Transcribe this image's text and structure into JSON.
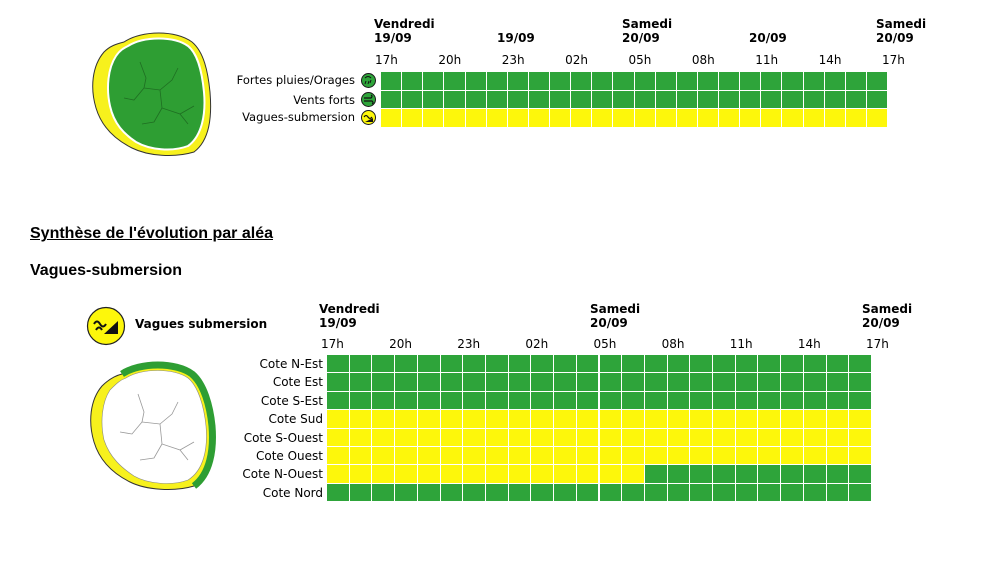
{
  "colors": {
    "green": "#2ea43a",
    "yellow": "#fdf70b",
    "map_green": "#2e9e33",
    "map_yellow": "#f7f11d"
  },
  "top_chart": {
    "days": [
      {
        "name": "Vendredi",
        "date": "19/09"
      },
      {
        "name": "",
        "date": "19/09"
      },
      {
        "name": "Samedi",
        "date": "20/09"
      },
      {
        "name": "",
        "date": "20/09"
      },
      {
        "name": "Samedi",
        "date": "20/09"
      }
    ],
    "hours": [
      "17h",
      "20h",
      "23h",
      "02h",
      "05h",
      "08h",
      "11h",
      "14h",
      "17h"
    ],
    "rows": [
      {
        "label": "Fortes pluies/Orages",
        "icon": "rain-storm-icon",
        "levels": [
          "green",
          "green",
          "green",
          "green",
          "green",
          "green",
          "green",
          "green",
          "green",
          "green",
          "green",
          "green",
          "green",
          "green",
          "green",
          "green",
          "green",
          "green",
          "green",
          "green",
          "green",
          "green",
          "green",
          "green"
        ]
      },
      {
        "label": "Vents forts",
        "icon": "wind-icon",
        "levels": [
          "green",
          "green",
          "green",
          "green",
          "green",
          "green",
          "green",
          "green",
          "green",
          "green",
          "green",
          "green",
          "green",
          "green",
          "green",
          "green",
          "green",
          "green",
          "green",
          "green",
          "green",
          "green",
          "green",
          "green"
        ]
      },
      {
        "label": "Vagues-submersion",
        "icon": "wave-icon",
        "levels": [
          "yellow",
          "yellow",
          "yellow",
          "yellow",
          "yellow",
          "yellow",
          "yellow",
          "yellow",
          "yellow",
          "yellow",
          "yellow",
          "yellow",
          "yellow",
          "yellow",
          "yellow",
          "yellow",
          "yellow",
          "yellow",
          "yellow",
          "yellow",
          "yellow",
          "yellow",
          "yellow",
          "yellow"
        ]
      }
    ]
  },
  "section_title": "Synthèse de l'évolution par aléa",
  "subsection_title": "Vagues-submersion",
  "legend_label": "Vagues submersion",
  "bottom_chart": {
    "days": [
      {
        "name": "Vendredi",
        "date": "19/09"
      },
      {
        "name": "Samedi",
        "date": "20/09"
      },
      {
        "name": "Samedi",
        "date": "20/09"
      }
    ],
    "hours": [
      "17h",
      "20h",
      "23h",
      "02h",
      "05h",
      "08h",
      "11h",
      "14h",
      "17h"
    ],
    "rows": [
      {
        "label": "Cote N-Est",
        "levels": [
          "green",
          "green",
          "green",
          "green",
          "green",
          "green",
          "green",
          "green",
          "green",
          "green",
          "green",
          "green",
          "green",
          "green",
          "green",
          "green",
          "green",
          "green",
          "green",
          "green",
          "green",
          "green",
          "green",
          "green"
        ]
      },
      {
        "label": "Cote Est",
        "levels": [
          "green",
          "green",
          "green",
          "green",
          "green",
          "green",
          "green",
          "green",
          "green",
          "green",
          "green",
          "green",
          "green",
          "green",
          "green",
          "green",
          "green",
          "green",
          "green",
          "green",
          "green",
          "green",
          "green",
          "green"
        ]
      },
      {
        "label": "Cote S-Est",
        "levels": [
          "green",
          "green",
          "green",
          "green",
          "green",
          "green",
          "green",
          "green",
          "green",
          "green",
          "green",
          "green",
          "green",
          "green",
          "green",
          "green",
          "green",
          "green",
          "green",
          "green",
          "green",
          "green",
          "green",
          "green"
        ]
      },
      {
        "label": "Cote Sud",
        "levels": [
          "yellow",
          "yellow",
          "yellow",
          "yellow",
          "yellow",
          "yellow",
          "yellow",
          "yellow",
          "yellow",
          "yellow",
          "yellow",
          "yellow",
          "yellow",
          "yellow",
          "yellow",
          "yellow",
          "yellow",
          "yellow",
          "yellow",
          "yellow",
          "yellow",
          "yellow",
          "yellow",
          "yellow"
        ]
      },
      {
        "label": "Cote S-Ouest",
        "levels": [
          "yellow",
          "yellow",
          "yellow",
          "yellow",
          "yellow",
          "yellow",
          "yellow",
          "yellow",
          "yellow",
          "yellow",
          "yellow",
          "yellow",
          "yellow",
          "yellow",
          "yellow",
          "yellow",
          "yellow",
          "yellow",
          "yellow",
          "yellow",
          "yellow",
          "yellow",
          "yellow",
          "yellow"
        ]
      },
      {
        "label": "Cote Ouest",
        "levels": [
          "yellow",
          "yellow",
          "yellow",
          "yellow",
          "yellow",
          "yellow",
          "yellow",
          "yellow",
          "yellow",
          "yellow",
          "yellow",
          "yellow",
          "yellow",
          "yellow",
          "yellow",
          "yellow",
          "yellow",
          "yellow",
          "yellow",
          "yellow",
          "yellow",
          "yellow",
          "yellow",
          "yellow"
        ]
      },
      {
        "label": "Cote N-Ouest",
        "levels": [
          "yellow",
          "yellow",
          "yellow",
          "yellow",
          "yellow",
          "yellow",
          "yellow",
          "yellow",
          "yellow",
          "yellow",
          "yellow",
          "yellow",
          "yellow",
          "yellow",
          "green",
          "green",
          "green",
          "green",
          "green",
          "green",
          "green",
          "green",
          "green",
          "green"
        ]
      },
      {
        "label": "Cote Nord",
        "levels": [
          "green",
          "green",
          "green",
          "green",
          "green",
          "green",
          "green",
          "green",
          "green",
          "green",
          "green",
          "green",
          "green",
          "green",
          "green",
          "green",
          "green",
          "green",
          "green",
          "green",
          "green",
          "green",
          "green",
          "green"
        ]
      }
    ]
  }
}
